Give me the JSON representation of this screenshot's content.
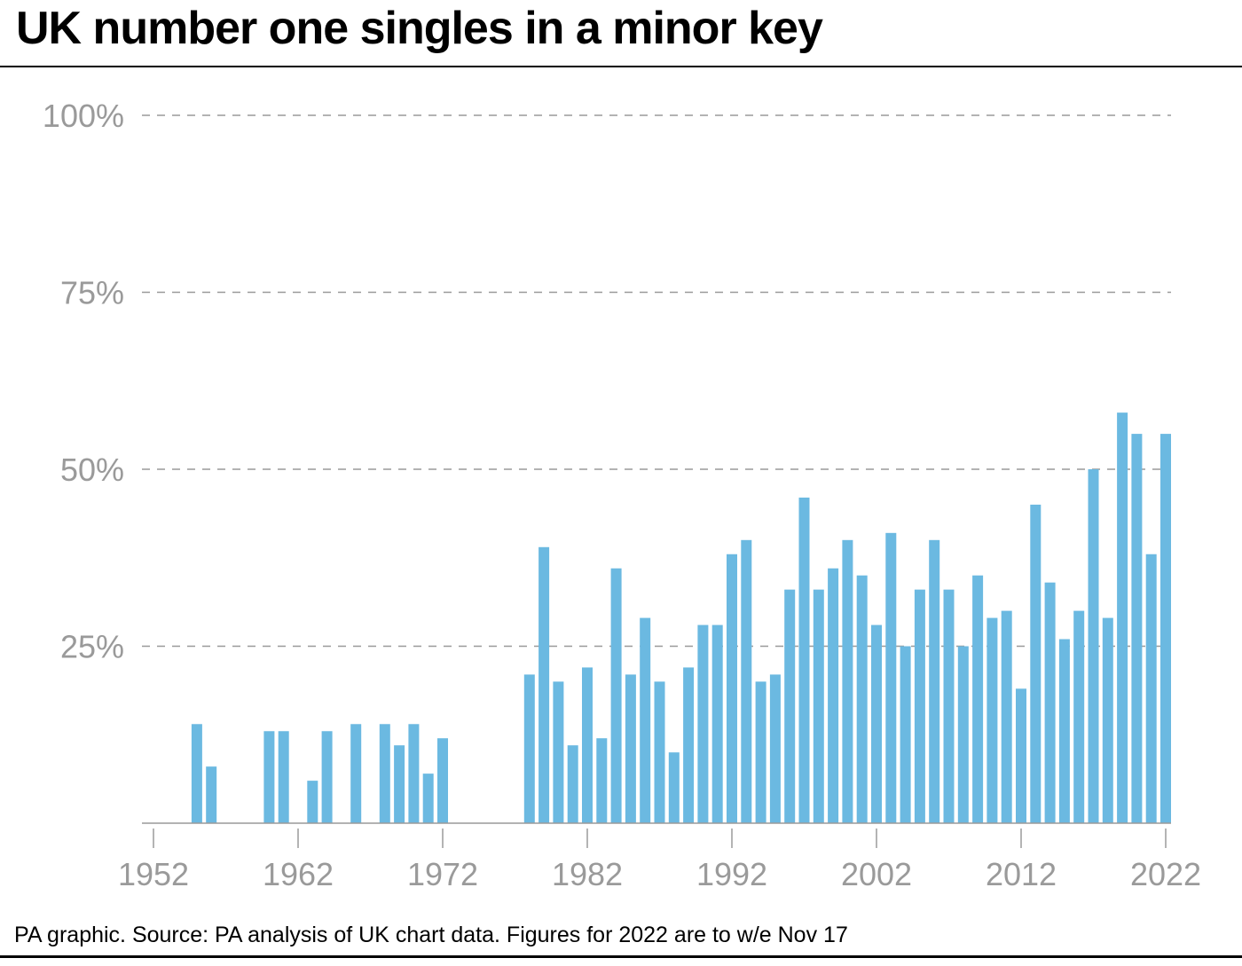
{
  "header": {
    "title": "UK number one singles in a minor key"
  },
  "footer": {
    "source": "PA graphic. Source: PA analysis of UK chart data. Figures for 2022 are to w/e Nov 17"
  },
  "colors": {
    "bar": "#6bb9e1",
    "grid": "#9a9a9a",
    "axis": "#9a9a9a",
    "text": "#000000"
  },
  "chart_data": {
    "type": "bar",
    "title": "UK number one singles in a minor key",
    "xlabel": "",
    "ylabel": "",
    "ylim": [
      0,
      100
    ],
    "xlim": [
      1952,
      2022
    ],
    "grid": true,
    "y_ticks": [
      {
        "value": 25,
        "label": "25%"
      },
      {
        "value": 50,
        "label": "50%"
      },
      {
        "value": 75,
        "label": "75%"
      },
      {
        "value": 100,
        "label": "100%"
      }
    ],
    "x_ticks": [
      {
        "value": 1952,
        "label": "1952"
      },
      {
        "value": 1962,
        "label": "1962"
      },
      {
        "value": 1972,
        "label": "1972"
      },
      {
        "value": 1982,
        "label": "1982"
      },
      {
        "value": 1992,
        "label": "1992"
      },
      {
        "value": 2002,
        "label": "2002"
      },
      {
        "value": 2012,
        "label": "2012"
      },
      {
        "value": 2022,
        "label": "2022"
      }
    ],
    "x": [
      1955,
      1956,
      1960,
      1961,
      1963,
      1964,
      1966,
      1968,
      1969,
      1970,
      1971,
      1972,
      1978,
      1979,
      1980,
      1981,
      1982,
      1983,
      1984,
      1985,
      1986,
      1987,
      1988,
      1989,
      1990,
      1991,
      1992,
      1993,
      1994,
      1995,
      1996,
      1997,
      1998,
      1999,
      2000,
      2001,
      2002,
      2003,
      2004,
      2005,
      2006,
      2007,
      2008,
      2009,
      2010,
      2011,
      2012,
      2013,
      2014,
      2015,
      2016,
      2017,
      2018,
      2019,
      2020,
      2021,
      2022
    ],
    "values": [
      14,
      8,
      13,
      13,
      6,
      13,
      14,
      14,
      11,
      14,
      7,
      12,
      21,
      39,
      20,
      11,
      22,
      12,
      36,
      21,
      29,
      20,
      10,
      22,
      28,
      28,
      38,
      40,
      20,
      21,
      33,
      46,
      33,
      36,
      40,
      35,
      28,
      41,
      25,
      33,
      40,
      33,
      25,
      35,
      29,
      30,
      19,
      45,
      34,
      26,
      30,
      50,
      29,
      58,
      55,
      38,
      55
    ]
  }
}
